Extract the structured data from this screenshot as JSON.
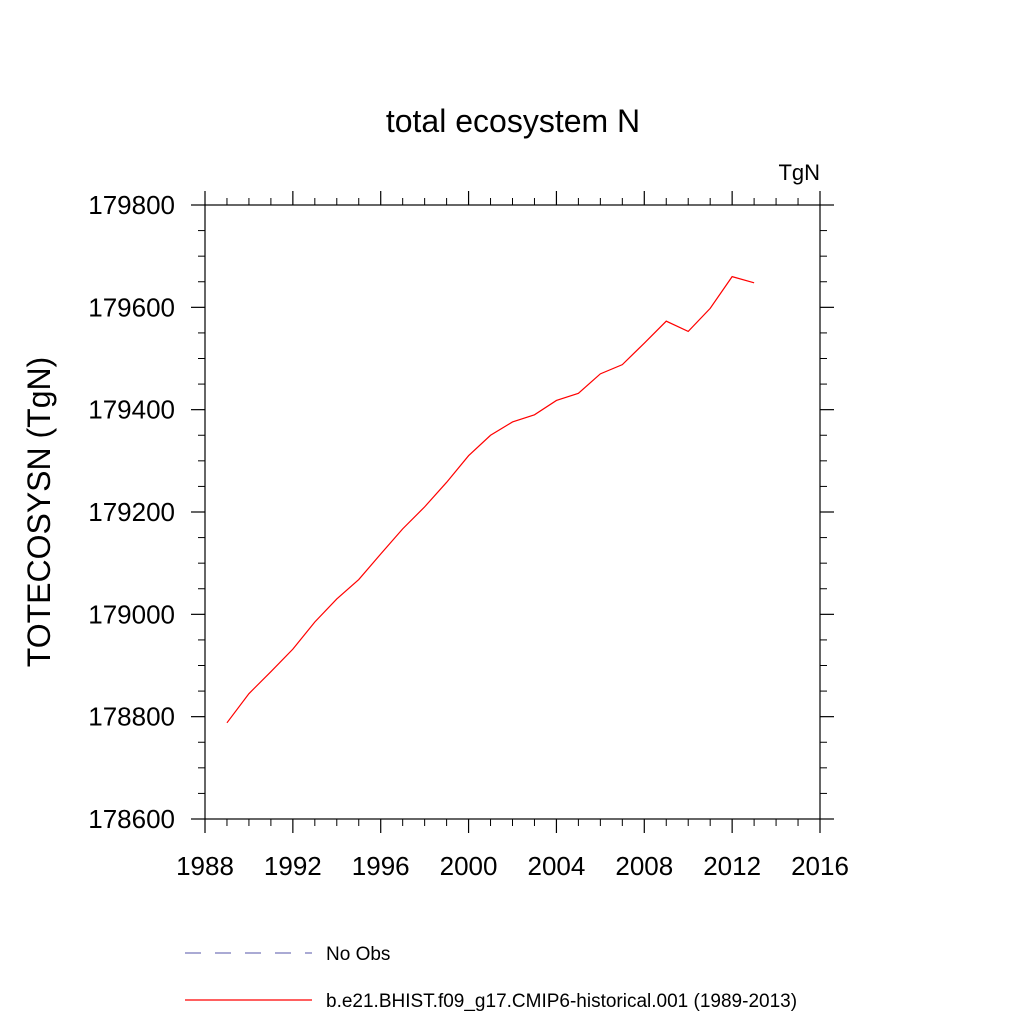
{
  "chart_data": {
    "type": "line",
    "title": "total ecosystem N",
    "units_label": "TgN",
    "xlabel": "",
    "ylabel": "TOTECOSYSN  (TgN)",
    "xlim": [
      1988,
      2016
    ],
    "ylim": [
      178600,
      179800
    ],
    "x_ticks": [
      1988,
      1992,
      1996,
      2000,
      2004,
      2008,
      2012,
      2016
    ],
    "y_ticks": [
      178600,
      178800,
      179000,
      179200,
      179400,
      179600,
      179800
    ],
    "grid": false,
    "legend_placement": "bottom",
    "series": [
      {
        "name": "b.e21.BHIST.f09_g17.CMIP6-historical.001 (1989-2013)",
        "color": "#ff0000",
        "style": "solid",
        "x": [
          1989,
          1990,
          1991,
          1992,
          1993,
          1994,
          1995,
          1996,
          1997,
          1998,
          1999,
          2000,
          2001,
          2002,
          2003,
          2004,
          2005,
          2006,
          2007,
          2008,
          2009,
          2010,
          2011,
          2012,
          2013
        ],
        "y": [
          178788,
          178845,
          178888,
          178932,
          178985,
          179030,
          179068,
          179118,
          179167,
          179210,
          179258,
          179310,
          179350,
          179376,
          179390,
          179418,
          179432,
          179470,
          179488,
          179530,
          179573,
          179553,
          179598,
          179660,
          179648
        ]
      }
    ],
    "legend": [
      {
        "label": "No Obs",
        "color": "#7777bb",
        "style": "dashed"
      },
      {
        "label": "b.e21.BHIST.f09_g17.CMIP6-historical.001 (1989-2013)",
        "color": "#ff0000",
        "style": "solid"
      }
    ]
  }
}
